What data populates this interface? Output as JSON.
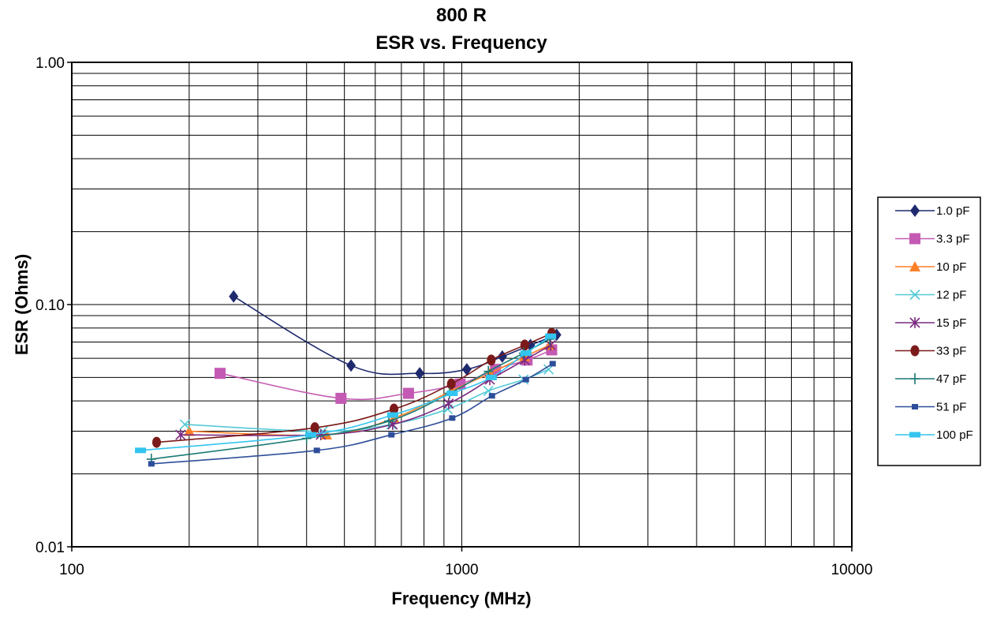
{
  "chart_data": {
    "type": "line",
    "title": "800 R",
    "subtitle": "ESR vs. Frequency",
    "xlabel": "Frequency (MHz)",
    "ylabel": "ESR (Ohms)",
    "x_scale": "log",
    "y_scale": "log",
    "xlim": [
      100,
      10000
    ],
    "ylim": [
      0.01,
      1.0
    ],
    "x_ticks": [
      100,
      1000,
      10000
    ],
    "x_tick_labels": [
      "100",
      "1000",
      "10000"
    ],
    "y_ticks": [
      0.01,
      0.1,
      1.0
    ],
    "y_tick_labels": [
      "0.01",
      "0.10",
      "1.00"
    ],
    "grid": true,
    "legend_position": "right",
    "series": [
      {
        "name": "1.0 pF",
        "color": "#1f2a6e",
        "marker": "diamond",
        "x": [
          260,
          520,
          780,
          1030,
          1270,
          1500,
          1750
        ],
        "y": [
          0.108,
          0.056,
          0.052,
          0.054,
          0.061,
          0.068,
          0.075
        ]
      },
      {
        "name": "3.3 pF",
        "color": "#c45ab3",
        "marker": "square",
        "x": [
          240,
          490,
          730,
          990,
          1220,
          1470,
          1700
        ],
        "y": [
          0.052,
          0.041,
          0.043,
          0.047,
          0.054,
          0.059,
          0.065
        ]
      },
      {
        "name": "10 pF",
        "color": "#ff7f27",
        "marker": "triangle",
        "x": [
          200,
          450,
          670,
          940,
          1180,
          1450,
          1680
        ],
        "y": [
          0.03,
          0.029,
          0.034,
          0.044,
          0.052,
          0.061,
          0.068
        ]
      },
      {
        "name": "12 pF",
        "color": "#54c9d6",
        "marker": "x",
        "x": [
          195,
          440,
          660,
          920,
          1170,
          1440,
          1670
        ],
        "y": [
          0.032,
          0.03,
          0.032,
          0.037,
          0.044,
          0.049,
          0.054
        ]
      },
      {
        "name": "15 pF",
        "color": "#7b2a80",
        "marker": "star",
        "x": [
          190,
          435,
          665,
          925,
          1180,
          1450,
          1690
        ],
        "y": [
          0.029,
          0.029,
          0.032,
          0.039,
          0.049,
          0.059,
          0.068
        ]
      },
      {
        "name": "33 pF",
        "color": "#7b1a1a",
        "marker": "circle",
        "x": [
          165,
          420,
          670,
          940,
          1190,
          1450,
          1700
        ],
        "y": [
          0.027,
          0.031,
          0.037,
          0.047,
          0.059,
          0.068,
          0.076
        ]
      },
      {
        "name": "47 pF",
        "color": "#1b7a73",
        "marker": "plus",
        "x": [
          160,
          400,
          650,
          930,
          1170,
          1440,
          1680
        ],
        "y": [
          0.023,
          0.028,
          0.033,
          0.043,
          0.053,
          0.063,
          0.072
        ]
      },
      {
        "name": "51 pF",
        "color": "#2e4e9a",
        "marker": "smallsquare",
        "x": [
          160,
          425,
          660,
          945,
          1195,
          1460,
          1710
        ],
        "y": [
          0.022,
          0.025,
          0.029,
          0.034,
          0.042,
          0.049,
          0.057
        ]
      },
      {
        "name": "100 pF",
        "color": "#33c4ef",
        "marker": "bar",
        "x": [
          150,
          410,
          665,
          945,
          1190,
          1460,
          1690
        ],
        "y": [
          0.025,
          0.029,
          0.035,
          0.043,
          0.05,
          0.063,
          0.074
        ]
      }
    ]
  }
}
